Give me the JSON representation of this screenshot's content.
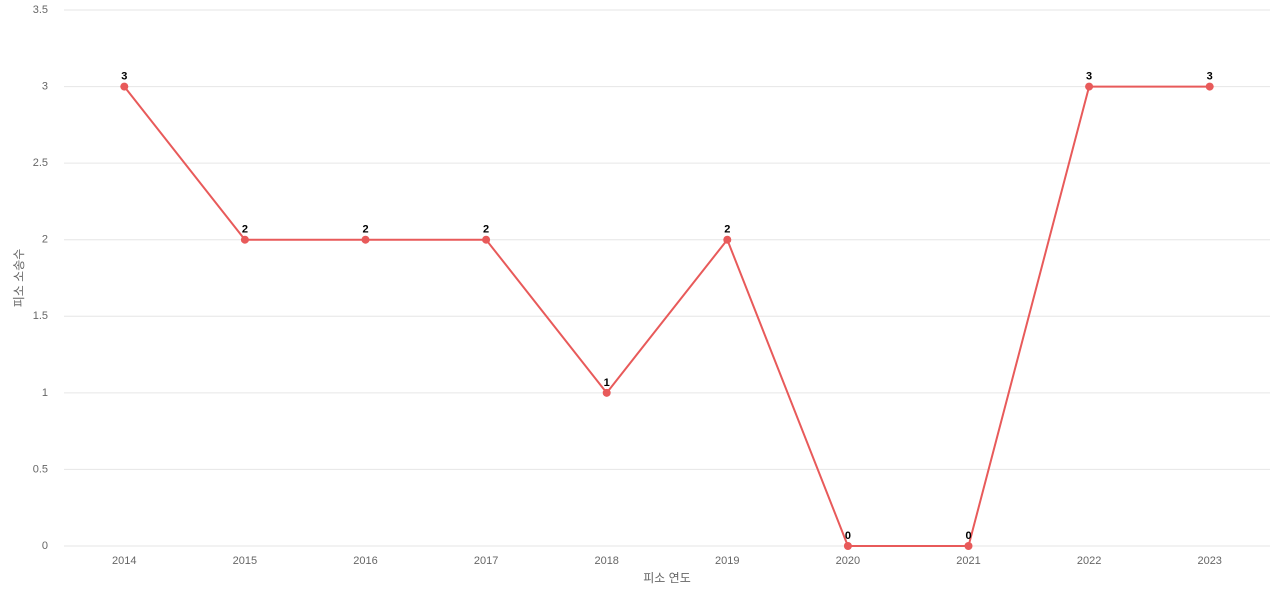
{
  "chart_data": {
    "type": "line",
    "x_label": "피소 연도",
    "y_label": "피소 소송수",
    "categories": [
      "2014",
      "2015",
      "2016",
      "2017",
      "2018",
      "2019",
      "2020",
      "2021",
      "2022",
      "2023"
    ],
    "series": [
      {
        "name": "피소 소송수",
        "color": "#e85a5a",
        "values": [
          3,
          2,
          2,
          2,
          1,
          2,
          0,
          0,
          3,
          3
        ]
      }
    ],
    "ylim": [
      0,
      3.5
    ],
    "yticks": [
      0,
      0.5,
      1,
      1.5,
      2,
      2.5,
      3,
      3.5
    ],
    "grid": true
  }
}
